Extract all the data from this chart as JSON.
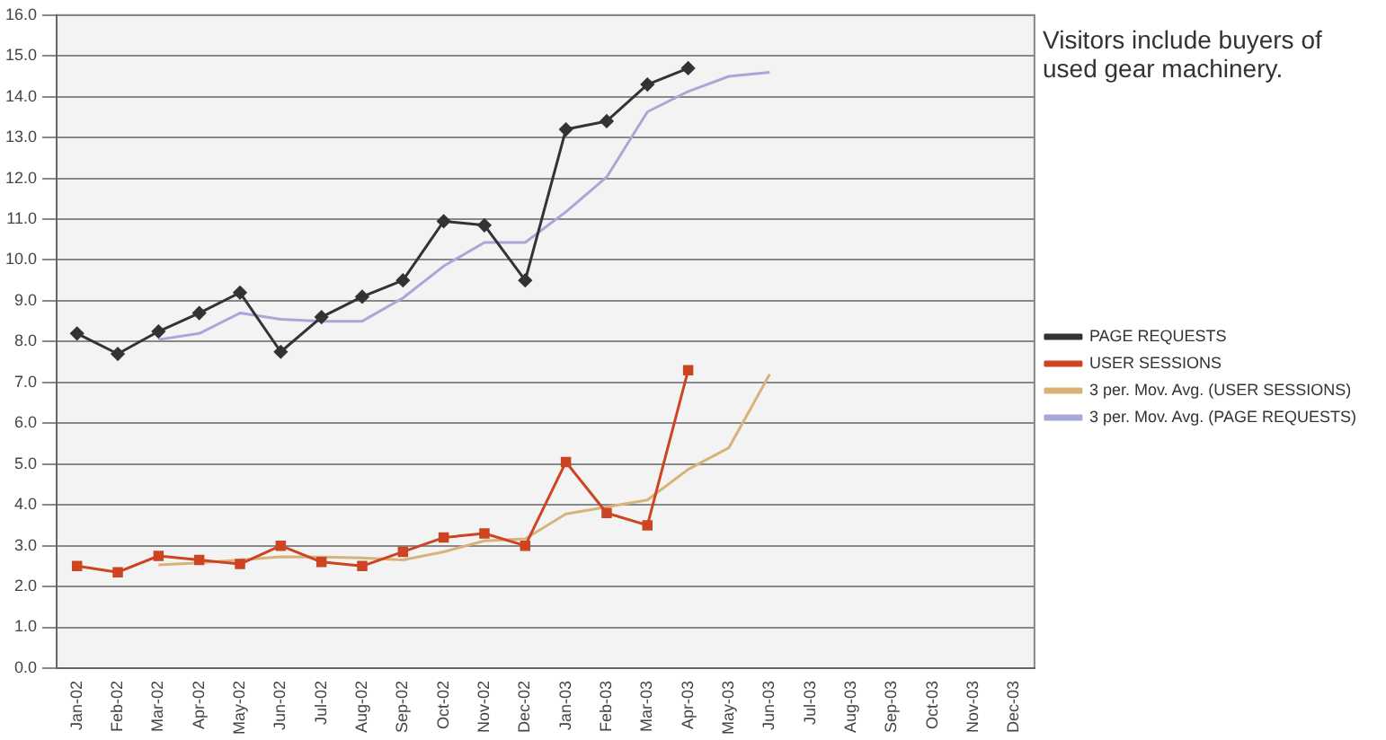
{
  "chart_data": {
    "type": "line",
    "categories": [
      "Jan-02",
      "Feb-02",
      "Mar-02",
      "Apr-02",
      "May-02",
      "Jun-02",
      "Jul-02",
      "Aug-02",
      "Sep-02",
      "Oct-02",
      "Nov-02",
      "Dec-02",
      "Jan-03",
      "Feb-03",
      "Mar-03",
      "Apr-03",
      "May-03",
      "Jun-03",
      "Jul-03",
      "Aug-03",
      "Sep-03",
      "Oct-03",
      "Nov-03",
      "Dec-03"
    ],
    "series": [
      {
        "name": "PAGE REQUESTS",
        "color": "#333333",
        "marker": "diamond",
        "values": [
          8.2,
          7.7,
          8.25,
          8.7,
          9.2,
          7.75,
          8.6,
          9.1,
          9.5,
          10.95,
          10.85,
          9.5,
          13.2,
          13.4,
          14.3,
          14.7,
          null,
          null,
          null,
          null,
          null,
          null,
          null,
          null
        ]
      },
      {
        "name": "USER SESSIONS",
        "color": "#cc4422",
        "marker": "square",
        "values": [
          2.5,
          2.35,
          2.75,
          2.65,
          2.55,
          3.0,
          2.6,
          2.5,
          2.85,
          3.2,
          3.3,
          3.0,
          5.05,
          3.8,
          3.5,
          7.3,
          null,
          null,
          null,
          null,
          null,
          null,
          null,
          null
        ]
      },
      {
        "name": "3 per. Mov. Avg. (USER SESSIONS)",
        "color": "#d9b27a",
        "marker": "none",
        "values": [
          null,
          null,
          2.53,
          2.58,
          2.65,
          2.73,
          2.72,
          2.7,
          2.65,
          2.85,
          3.12,
          3.17,
          3.78,
          3.95,
          4.12,
          4.87,
          5.4,
          7.2,
          null,
          null,
          null,
          null,
          null,
          null
        ]
      },
      {
        "name": "3 per. Mov. Avg. (PAGE REQUESTS)",
        "color": "#a8a8d8",
        "marker": "none",
        "values": [
          null,
          null,
          8.05,
          8.2,
          8.7,
          8.55,
          8.5,
          8.5,
          9.07,
          9.85,
          10.43,
          10.43,
          11.18,
          12.03,
          13.63,
          14.13,
          14.5,
          14.6,
          null,
          null,
          null,
          null,
          null,
          null
        ]
      }
    ],
    "ylim": [
      0,
      16
    ],
    "yticks": [
      {
        "value": 0,
        "label": "0.0"
      },
      {
        "value": 1,
        "label": "1.0"
      },
      {
        "value": 2,
        "label": "2.0"
      },
      {
        "value": 3,
        "label": "3.0"
      },
      {
        "value": 4,
        "label": "4.0"
      },
      {
        "value": 5,
        "label": "5.0"
      },
      {
        "value": 6,
        "label": "6.0"
      },
      {
        "value": 7,
        "label": "7.0"
      },
      {
        "value": 8,
        "label": "8.0"
      },
      {
        "value": 9,
        "label": "9.0"
      },
      {
        "value": 10,
        "label": "10.0"
      },
      {
        "value": 11,
        "label": "11.0"
      },
      {
        "value": 12,
        "label": "12.0"
      },
      {
        "value": 13,
        "label": "13.0"
      },
      {
        "value": 14,
        "label": "14.0"
      },
      {
        "value": 15,
        "label": "15.0"
      },
      {
        "value": 16,
        "label": "16.0"
      }
    ],
    "grid": "y",
    "legend": "right",
    "line_style": "solid",
    "annotations": [
      "Visitors include buyers of used gear machinery."
    ]
  }
}
